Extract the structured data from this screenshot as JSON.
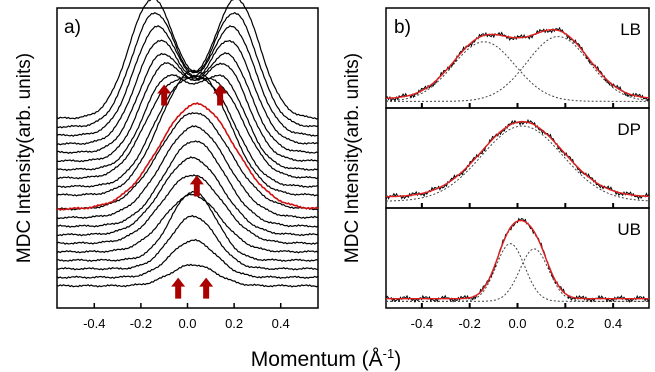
{
  "xlabel": "Momentum (Å",
  "xlabel_sup": "-1",
  "xlabel_close": ")",
  "chart_data": [
    {
      "type": "line",
      "panel_label": "a)",
      "ylabel": "MDC Intensity(arb. units)",
      "xlim": [
        -0.56,
        0.56
      ],
      "ticks": [
        "-0.4",
        "-0.2",
        "0.0",
        "0.2",
        "0.4"
      ],
      "tick_values": [
        -0.4,
        -0.2,
        0.0,
        0.2,
        0.4
      ],
      "colors": {
        "curve": "#000000",
        "highlight": "#cc1111",
        "arrow": "#aa0000"
      },
      "highlight_index": 10,
      "series": [
        {
          "baseline": 0.05,
          "peaks": [
            [
              -0.01,
              0.09,
              0.04
            ],
            [
              0.06,
              0.09,
              0.04
            ]
          ]
        },
        {
          "baseline": 0.08,
          "peaks": [
            [
              -0.01,
              0.09,
              0.07
            ],
            [
              0.06,
              0.09,
              0.07
            ]
          ]
        },
        {
          "baseline": 0.11,
          "peaks": [
            [
              -0.01,
              0.09,
              0.1
            ],
            [
              0.06,
              0.09,
              0.1
            ]
          ]
        },
        {
          "baseline": 0.14,
          "peaks": [
            [
              -0.01,
              0.09,
              0.13
            ],
            [
              0.06,
              0.09,
              0.13
            ]
          ]
        },
        {
          "baseline": 0.17,
          "peaks": [
            [
              0.02,
              0.12,
              0.2
            ]
          ]
        },
        {
          "baseline": 0.2,
          "peaks": [
            [
              0.02,
              0.13,
              0.24
            ]
          ]
        },
        {
          "baseline": 0.23,
          "peaks": [
            [
              0.02,
              0.13,
              0.27
            ]
          ]
        },
        {
          "baseline": 0.26,
          "peaks": [
            [
              0.03,
              0.13,
              0.3
            ]
          ]
        },
        {
          "baseline": 0.29,
          "peaks": [
            [
              0.03,
              0.14,
              0.32
            ]
          ]
        },
        {
          "baseline": 0.32,
          "peaks": [
            [
              0.03,
              0.15,
              0.34
            ]
          ]
        },
        {
          "baseline": 0.32,
          "peaks": [
            [
              0.04,
              0.16,
              0.37
            ]
          ]
        },
        {
          "baseline": 0.37,
          "peaks": [
            [
              -0.04,
              0.12,
              0.26
            ],
            [
              0.1,
              0.12,
              0.26
            ]
          ]
        },
        {
          "baseline": 0.4,
          "peaks": [
            [
              -0.06,
              0.11,
              0.27
            ],
            [
              0.12,
              0.11,
              0.27
            ]
          ]
        },
        {
          "baseline": 0.43,
          "peaks": [
            [
              -0.08,
              0.11,
              0.29
            ],
            [
              0.14,
              0.11,
              0.29
            ]
          ]
        },
        {
          "baseline": 0.46,
          "peaks": [
            [
              -0.09,
              0.1,
              0.31
            ],
            [
              0.15,
              0.1,
              0.31
            ]
          ]
        },
        {
          "baseline": 0.49,
          "peaks": [
            [
              -0.1,
              0.1,
              0.33
            ],
            [
              0.16,
              0.1,
              0.33
            ]
          ]
        },
        {
          "baseline": 0.52,
          "peaks": [
            [
              -0.11,
              0.1,
              0.34
            ],
            [
              0.17,
              0.1,
              0.34
            ]
          ]
        },
        {
          "baseline": 0.55,
          "peaks": [
            [
              -0.12,
              0.1,
              0.36
            ],
            [
              0.18,
              0.1,
              0.36
            ]
          ]
        },
        {
          "baseline": 0.58,
          "peaks": [
            [
              -0.13,
              0.1,
              0.38
            ],
            [
              0.19,
              0.1,
              0.38
            ]
          ]
        },
        {
          "baseline": 0.61,
          "peaks": [
            [
              -0.14,
              0.1,
              0.4
            ],
            [
              0.2,
              0.1,
              0.4
            ]
          ]
        },
        {
          "baseline": 0.64,
          "peaks": [
            [
              -0.15,
              0.1,
              0.42
            ],
            [
              0.21,
              0.1,
              0.42
            ]
          ]
        }
      ],
      "arrows": [
        {
          "x": -0.04,
          "y": 0.04
        },
        {
          "x": 0.08,
          "y": 0.04
        },
        {
          "x": 0.04,
          "y": 0.4
        },
        {
          "x": -0.1,
          "y": 0.72
        },
        {
          "x": 0.14,
          "y": 0.72
        }
      ]
    },
    {
      "type": "line",
      "panel_label": "b)",
      "ylabel": "MDC Intensity(arb. units)",
      "xlim": [
        -0.55,
        0.55
      ],
      "ticks": [
        "-0.4",
        "-0.2",
        "0.0",
        "0.2",
        "0.4"
      ],
      "tick_values": [
        -0.4,
        -0.2,
        0.0,
        0.2,
        0.4
      ],
      "colors": {
        "data": "#000000",
        "fit": "#e02020",
        "component": "#444444"
      },
      "subpanels": [
        {
          "label": "LB",
          "baseline": 0.06,
          "components": [
            [
              -0.14,
              0.13,
              0.68
            ],
            [
              0.17,
              0.13,
              0.74
            ]
          ],
          "ylim": [
            0,
            1.05
          ]
        },
        {
          "label": "DP",
          "baseline": 0.08,
          "components": [
            [
              0.02,
              0.17,
              0.86
            ]
          ],
          "ylim": [
            0,
            1.05
          ]
        },
        {
          "label": "UB",
          "baseline": 0.06,
          "components": [
            [
              -0.03,
              0.06,
              0.66
            ],
            [
              0.07,
              0.06,
              0.6
            ]
          ],
          "ylim": [
            0,
            1.05
          ]
        }
      ]
    }
  ]
}
